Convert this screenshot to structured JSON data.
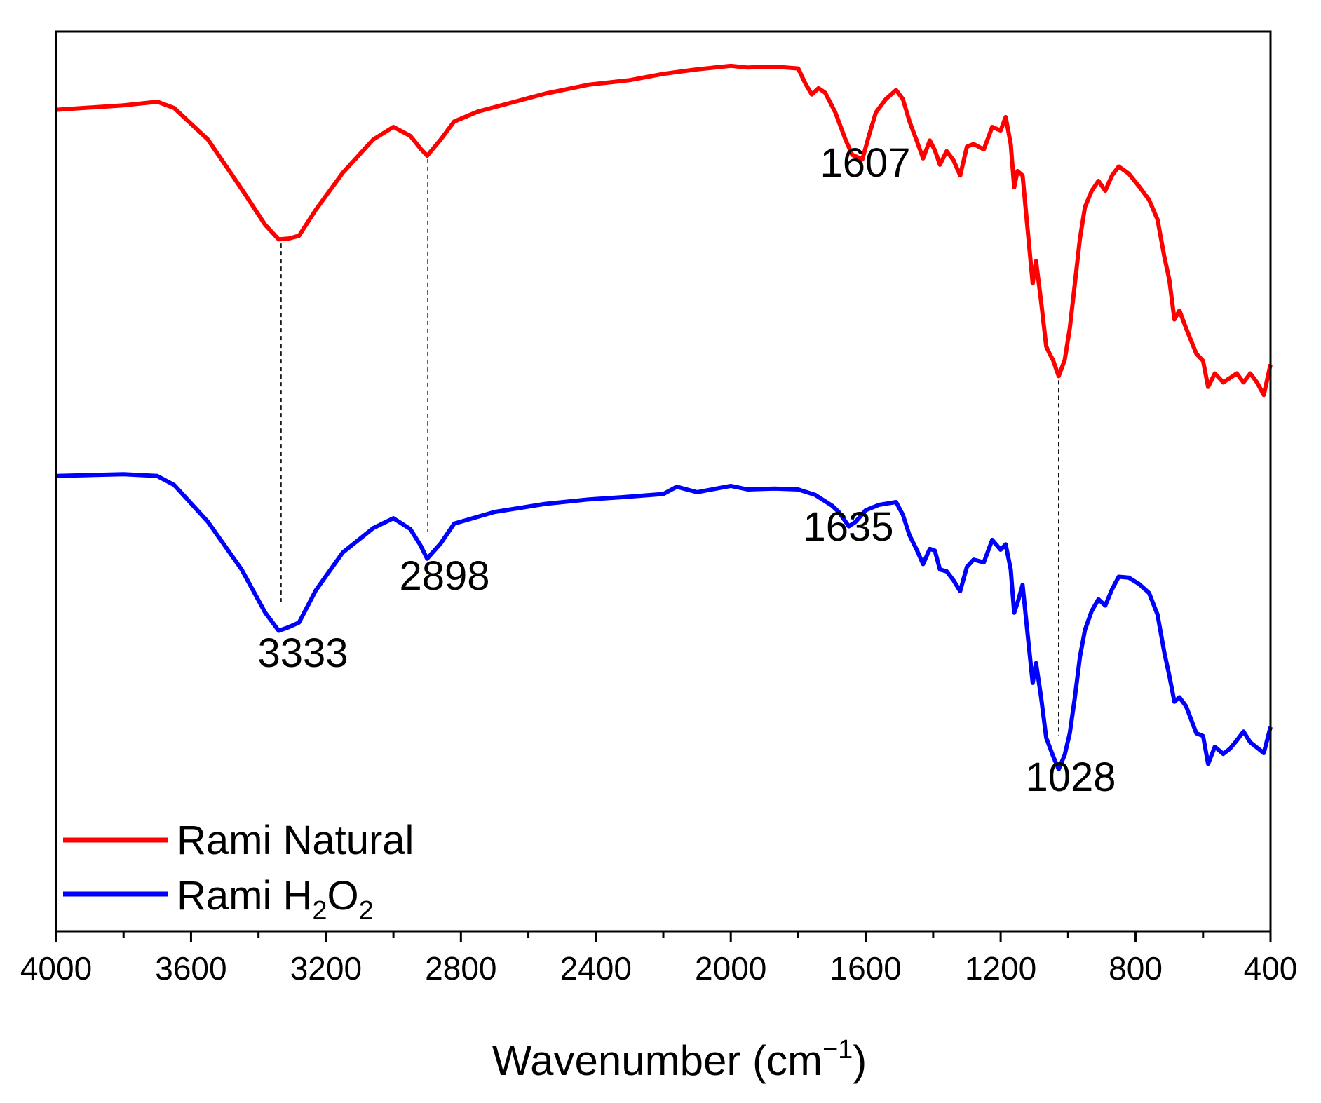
{
  "chart_data": {
    "type": "line",
    "title": "",
    "xlabel": "Wavenumber (cm",
    "xlabel_superscript": "−1",
    "xlabel_close": ")",
    "ylabel": "",
    "xlim": [
      4000,
      400
    ],
    "ylim": [
      0,
      100
    ],
    "x_ticks": [
      "4000",
      "3600",
      "3200",
      "2800",
      "2400",
      "2000",
      "1600",
      "1200",
      "800",
      "400"
    ],
    "y_ticks": [],
    "legend_position": "bottom-left",
    "series": [
      {
        "name": "Rami Natural",
        "color": "#ff0000",
        "points": [
          [
            4000,
            91.3
          ],
          [
            3800,
            91.8
          ],
          [
            3700,
            92.2
          ],
          [
            3650,
            91.5
          ],
          [
            3550,
            88.0
          ],
          [
            3450,
            82.5
          ],
          [
            3380,
            78.5
          ],
          [
            3340,
            76.9
          ],
          [
            3310,
            77.0
          ],
          [
            3280,
            77.3
          ],
          [
            3230,
            80.2
          ],
          [
            3150,
            84.3
          ],
          [
            3060,
            88.0
          ],
          [
            3000,
            89.4
          ],
          [
            2950,
            88.4
          ],
          [
            2920,
            87.0
          ],
          [
            2900,
            86.2
          ],
          [
            2860,
            88.0
          ],
          [
            2820,
            90.0
          ],
          [
            2750,
            91.1
          ],
          [
            2650,
            92.1
          ],
          [
            2550,
            93.1
          ],
          [
            2420,
            94.1
          ],
          [
            2300,
            94.6
          ],
          [
            2200,
            95.3
          ],
          [
            2160,
            95.5
          ],
          [
            2100,
            95.8
          ],
          [
            2000,
            96.2
          ],
          [
            1950,
            96.0
          ],
          [
            1870,
            96.1
          ],
          [
            1800,
            95.9
          ],
          [
            1780,
            94.3
          ],
          [
            1760,
            93.0
          ],
          [
            1740,
            93.7
          ],
          [
            1720,
            93.2
          ],
          [
            1690,
            91.0
          ],
          [
            1660,
            88.0
          ],
          [
            1640,
            86.3
          ],
          [
            1610,
            85.8
          ],
          [
            1590,
            88.5
          ],
          [
            1570,
            91.0
          ],
          [
            1540,
            92.5
          ],
          [
            1510,
            93.5
          ],
          [
            1490,
            92.5
          ],
          [
            1470,
            90.0
          ],
          [
            1450,
            88.0
          ],
          [
            1430,
            85.9
          ],
          [
            1410,
            87.9
          ],
          [
            1395,
            86.8
          ],
          [
            1380,
            85.2
          ],
          [
            1360,
            86.7
          ],
          [
            1340,
            85.7
          ],
          [
            1320,
            84.0
          ],
          [
            1300,
            87.2
          ],
          [
            1280,
            87.5
          ],
          [
            1250,
            86.9
          ],
          [
            1225,
            89.4
          ],
          [
            1200,
            89.0
          ],
          [
            1185,
            90.5
          ],
          [
            1170,
            87.5
          ],
          [
            1160,
            82.7
          ],
          [
            1150,
            84.5
          ],
          [
            1135,
            84.0
          ],
          [
            1120,
            78.0
          ],
          [
            1105,
            72.0
          ],
          [
            1095,
            74.5
          ],
          [
            1080,
            70.0
          ],
          [
            1065,
            65.0
          ],
          [
            1055,
            64.2
          ],
          [
            1045,
            63.5
          ],
          [
            1028,
            61.7
          ],
          [
            1010,
            63.5
          ],
          [
            995,
            67.0
          ],
          [
            980,
            72.0
          ],
          [
            965,
            77.0
          ],
          [
            950,
            80.5
          ],
          [
            930,
            82.3
          ],
          [
            910,
            83.4
          ],
          [
            890,
            82.3
          ],
          [
            870,
            84.0
          ],
          [
            850,
            85.0
          ],
          [
            820,
            84.2
          ],
          [
            790,
            82.8
          ],
          [
            760,
            81.3
          ],
          [
            735,
            79.1
          ],
          [
            715,
            75.0
          ],
          [
            700,
            72.4
          ],
          [
            685,
            68.0
          ],
          [
            670,
            69.0
          ],
          [
            650,
            67.0
          ],
          [
            620,
            64.2
          ],
          [
            600,
            63.4
          ],
          [
            585,
            60.5
          ],
          [
            565,
            62.0
          ],
          [
            540,
            61.0
          ],
          [
            520,
            61.5
          ],
          [
            500,
            62.0
          ],
          [
            480,
            61.0
          ],
          [
            460,
            62.0
          ],
          [
            440,
            61.0
          ],
          [
            420,
            59.6
          ],
          [
            400,
            63.0
          ]
        ]
      },
      {
        "name": "Rami H2O2",
        "color": "#0000ff",
        "points": [
          [
            4000,
            50.6
          ],
          [
            3800,
            50.8
          ],
          [
            3700,
            50.6
          ],
          [
            3650,
            49.6
          ],
          [
            3550,
            45.5
          ],
          [
            3450,
            40.2
          ],
          [
            3380,
            35.4
          ],
          [
            3340,
            33.4
          ],
          [
            3310,
            33.8
          ],
          [
            3280,
            34.3
          ],
          [
            3230,
            37.9
          ],
          [
            3150,
            42.1
          ],
          [
            3060,
            44.8
          ],
          [
            3000,
            45.9
          ],
          [
            2950,
            44.7
          ],
          [
            2920,
            42.9
          ],
          [
            2900,
            41.4
          ],
          [
            2860,
            43.1
          ],
          [
            2820,
            45.3
          ],
          [
            2700,
            46.6
          ],
          [
            2550,
            47.5
          ],
          [
            2420,
            48.0
          ],
          [
            2300,
            48.3
          ],
          [
            2200,
            48.6
          ],
          [
            2160,
            49.4
          ],
          [
            2100,
            48.8
          ],
          [
            2000,
            49.5
          ],
          [
            1950,
            49.1
          ],
          [
            1870,
            49.2
          ],
          [
            1800,
            49.1
          ],
          [
            1750,
            48.5
          ],
          [
            1700,
            47.3
          ],
          [
            1680,
            46.6
          ],
          [
            1650,
            45.0
          ],
          [
            1630,
            45.5
          ],
          [
            1600,
            46.8
          ],
          [
            1560,
            47.4
          ],
          [
            1510,
            47.7
          ],
          [
            1490,
            46.3
          ],
          [
            1470,
            44.0
          ],
          [
            1450,
            42.5
          ],
          [
            1430,
            40.8
          ],
          [
            1410,
            42.5
          ],
          [
            1395,
            42.3
          ],
          [
            1380,
            40.2
          ],
          [
            1360,
            40.0
          ],
          [
            1340,
            39.0
          ],
          [
            1320,
            37.8
          ],
          [
            1300,
            40.5
          ],
          [
            1280,
            41.3
          ],
          [
            1250,
            41.0
          ],
          [
            1225,
            43.5
          ],
          [
            1200,
            42.4
          ],
          [
            1185,
            43.0
          ],
          [
            1170,
            40.2
          ],
          [
            1160,
            35.4
          ],
          [
            1150,
            36.5
          ],
          [
            1135,
            38.5
          ],
          [
            1120,
            33.0
          ],
          [
            1105,
            27.6
          ],
          [
            1095,
            29.8
          ],
          [
            1080,
            26.0
          ],
          [
            1065,
            21.5
          ],
          [
            1055,
            20.5
          ],
          [
            1045,
            19.5
          ],
          [
            1028,
            18.0
          ],
          [
            1010,
            19.6
          ],
          [
            995,
            22.0
          ],
          [
            980,
            26.0
          ],
          [
            965,
            30.5
          ],
          [
            950,
            33.5
          ],
          [
            930,
            35.6
          ],
          [
            910,
            36.9
          ],
          [
            890,
            36.2
          ],
          [
            870,
            38.0
          ],
          [
            850,
            39.4
          ],
          [
            820,
            39.3
          ],
          [
            790,
            38.6
          ],
          [
            760,
            37.6
          ],
          [
            735,
            35.2
          ],
          [
            715,
            31.0
          ],
          [
            700,
            28.4
          ],
          [
            685,
            25.5
          ],
          [
            670,
            26.0
          ],
          [
            650,
            25.0
          ],
          [
            620,
            22.0
          ],
          [
            600,
            21.7
          ],
          [
            585,
            18.6
          ],
          [
            565,
            20.5
          ],
          [
            540,
            19.7
          ],
          [
            520,
            20.3
          ],
          [
            500,
            21.2
          ],
          [
            480,
            22.2
          ],
          [
            460,
            21.0
          ],
          [
            440,
            20.4
          ],
          [
            420,
            19.8
          ],
          [
            400,
            22.7
          ]
        ]
      }
    ],
    "peak_markers": [
      {
        "wavenumber": 3333,
        "label": "3333"
      },
      {
        "wavenumber": 2898,
        "label": "2898"
      },
      {
        "wavenumber": 1028,
        "label": "1028"
      }
    ],
    "annotations": [
      {
        "text": "1607",
        "wavenumber": 1607
      },
      {
        "text": "1635",
        "wavenumber": 1635
      }
    ],
    "legend": [
      {
        "label_main": "Rami Natural",
        "series": 0
      },
      {
        "label_main": "Rami H",
        "sub1": "2",
        "label_mid": "O",
        "sub2": "2",
        "series": 1
      }
    ]
  }
}
